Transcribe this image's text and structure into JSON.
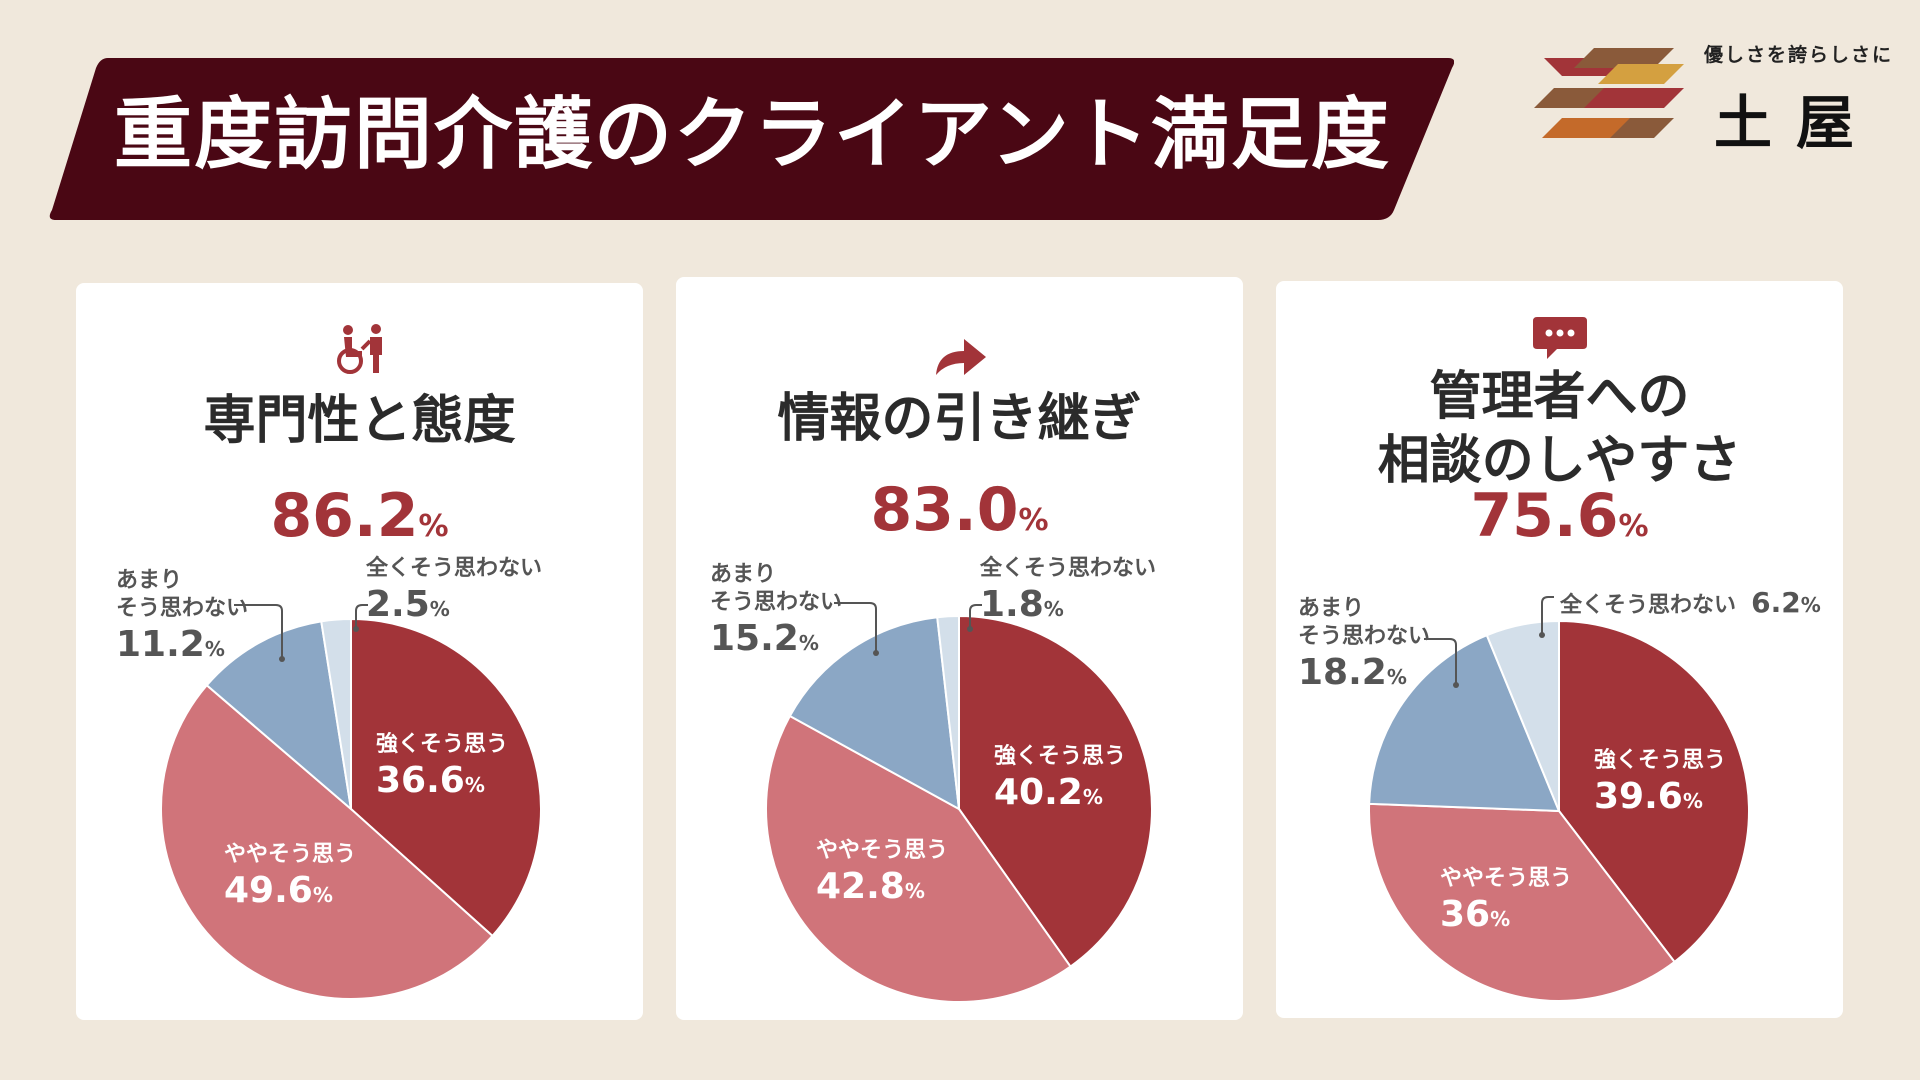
{
  "header": {
    "title": "重度訪問介護のクライアント満足度",
    "bg_color": "#4a0714"
  },
  "logo": {
    "tagline": "優しさを誇らしさに",
    "name": "土屋"
  },
  "colors": {
    "strongly_agree": "#a23439",
    "somewhat_agree": "#d0747a",
    "not_really": "#8ba7c5",
    "not_at_all": "#d3dfea",
    "accent": "#a23439"
  },
  "panels": [
    {
      "icon": "wheelchair-caregiver-icon",
      "title_lines": [
        "専門性と態度"
      ],
      "total": "86.2",
      "total_unit": "%",
      "labels": {
        "strongly_agree": {
          "name": "強くそう思う",
          "value": "36.6",
          "unit": "%"
        },
        "somewhat_agree": {
          "name": "ややそう思う",
          "value": "49.6",
          "unit": "%"
        },
        "not_really": {
          "name_lines": [
            "あまり",
            "そう思わない"
          ],
          "value": "11.2",
          "unit": "%"
        },
        "not_at_all": {
          "name": "全くそう思わない",
          "value": "2.5",
          "unit": "%"
        }
      }
    },
    {
      "icon": "forward-arrow-icon",
      "title_lines": [
        "情報の引き継ぎ"
      ],
      "total": "83.0",
      "total_unit": "%",
      "labels": {
        "strongly_agree": {
          "name": "強くそう思う",
          "value": "40.2",
          "unit": "%"
        },
        "somewhat_agree": {
          "name": "ややそう思う",
          "value": "42.8",
          "unit": "%"
        },
        "not_really": {
          "name_lines": [
            "あまり",
            "そう思わない"
          ],
          "value": "15.2",
          "unit": "%"
        },
        "not_at_all": {
          "name": "全くそう思わない",
          "value": "1.8",
          "unit": "%"
        }
      }
    },
    {
      "icon": "speech-bubble-icon",
      "title_lines": [
        "管理者への",
        "相談のしやすさ"
      ],
      "total": "75.6",
      "total_unit": "%",
      "labels": {
        "strongly_agree": {
          "name": "強くそう思う",
          "value": "39.6",
          "unit": "%"
        },
        "somewhat_agree": {
          "name": "ややそう思う",
          "value": "36",
          "unit": "%"
        },
        "not_really": {
          "name_lines": [
            "あまり",
            "そう思わない"
          ],
          "value": "18.2",
          "unit": "%"
        },
        "not_at_all": {
          "name": "全くそう思わない",
          "value": "6.2",
          "unit": "%"
        }
      }
    }
  ],
  "chart_data": [
    {
      "type": "pie",
      "title": "専門性と態度",
      "categories": [
        "強くそう思う",
        "ややそう思う",
        "あまりそう思わない",
        "全くそう思わない"
      ],
      "values": [
        36.6,
        49.6,
        11.2,
        2.5
      ]
    },
    {
      "type": "pie",
      "title": "情報の引き継ぎ",
      "categories": [
        "強くそう思う",
        "ややそう思う",
        "あまりそう思わない",
        "全くそう思わない"
      ],
      "values": [
        40.2,
        42.8,
        15.2,
        1.8
      ]
    },
    {
      "type": "pie",
      "title": "管理者への相談のしやすさ",
      "categories": [
        "強くそう思う",
        "ややそう思う",
        "あまりそう思わない",
        "全くそう思わない"
      ],
      "values": [
        39.6,
        36,
        18.2,
        6.2
      ]
    }
  ]
}
